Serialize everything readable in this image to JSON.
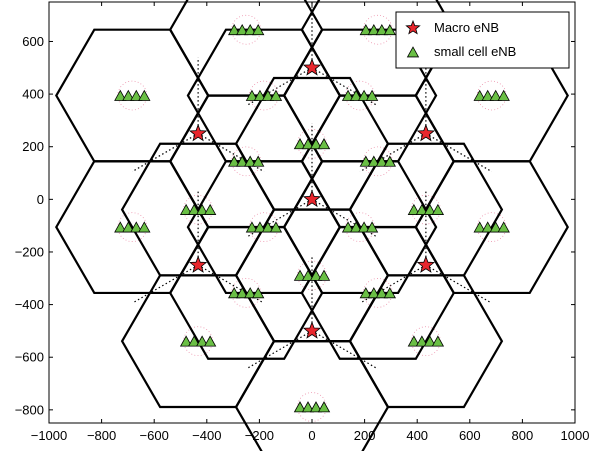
{
  "chart_data": {
    "type": "scatter",
    "title": "",
    "xlabel": "",
    "ylabel": "",
    "xlim": [
      -1000,
      1000
    ],
    "ylim": [
      -850,
      750
    ],
    "xticks": [
      -1000,
      -800,
      -600,
      -400,
      -200,
      0,
      200,
      400,
      600,
      800,
      1000
    ],
    "yticks": [
      -800,
      -600,
      -400,
      -200,
      0,
      200,
      400,
      600
    ],
    "grid": false,
    "legend_position": "top-right",
    "hex_circumradius": 289,
    "sector_radius": 289,
    "cluster_radius": 55,
    "small_cells_per_cluster": 4,
    "macro_sites": [
      {
        "x": 0,
        "y": 0
      },
      {
        "x": 0,
        "y": 500
      },
      {
        "x": 433,
        "y": 250
      },
      {
        "x": 433,
        "y": -250
      },
      {
        "x": 0,
        "y": -500
      },
      {
        "x": -433,
        "y": -250
      },
      {
        "x": -433,
        "y": 250
      }
    ],
    "series": [
      {
        "name": "Macro eNB",
        "marker": "star",
        "color": "#e8262d"
      },
      {
        "name": "small cell eNB",
        "marker": "triangle",
        "color": "#6abf45"
      }
    ],
    "sector_angles_deg": [
      90,
      210,
      330
    ],
    "cluster_angles_deg": [
      30,
      150,
      270
    ]
  }
}
